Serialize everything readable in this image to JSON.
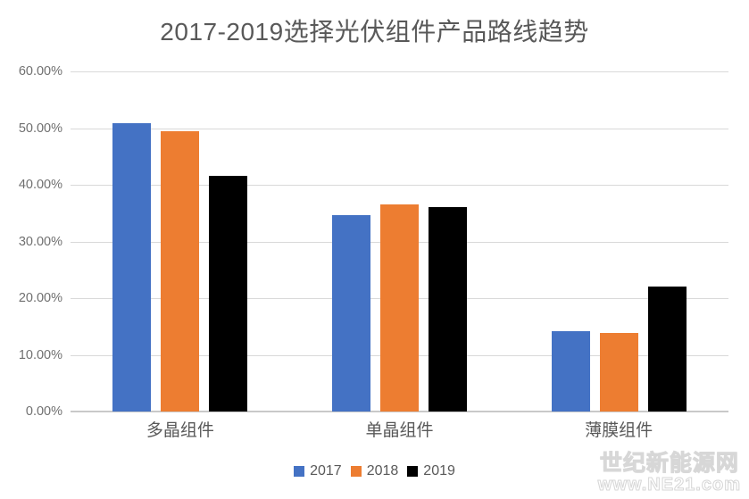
{
  "chart_data": {
    "type": "bar",
    "title": "2017-2019选择光伏组件产品路线趋势",
    "categories": [
      "多晶组件",
      "单晶组件",
      "薄膜组件"
    ],
    "series": [
      {
        "name": "2017",
        "color": "#4472C4",
        "values": [
          50.8,
          34.7,
          14.2
        ]
      },
      {
        "name": "2018",
        "color": "#ED7D31",
        "values": [
          49.4,
          36.6,
          13.9
        ]
      },
      {
        "name": "2019",
        "color": "#000000",
        "values": [
          41.6,
          36.1,
          22.0
        ]
      }
    ],
    "ylim": [
      0,
      60
    ],
    "ytick_step": 10,
    "yticks": [
      "0.00%",
      "10.00%",
      "20.00%",
      "30.00%",
      "40.00%",
      "50.00%",
      "60.00%"
    ],
    "xlabel": "",
    "ylabel": "",
    "grid": "horizontal",
    "legend_position": "bottom"
  },
  "watermark": {
    "line1": "世纪新能源网",
    "line2": "www.NE21.com"
  },
  "colors": {
    "gridline": "#d9d9d9",
    "axis_text": "#707070",
    "title_text": "#595959",
    "background": "#ffffff"
  }
}
